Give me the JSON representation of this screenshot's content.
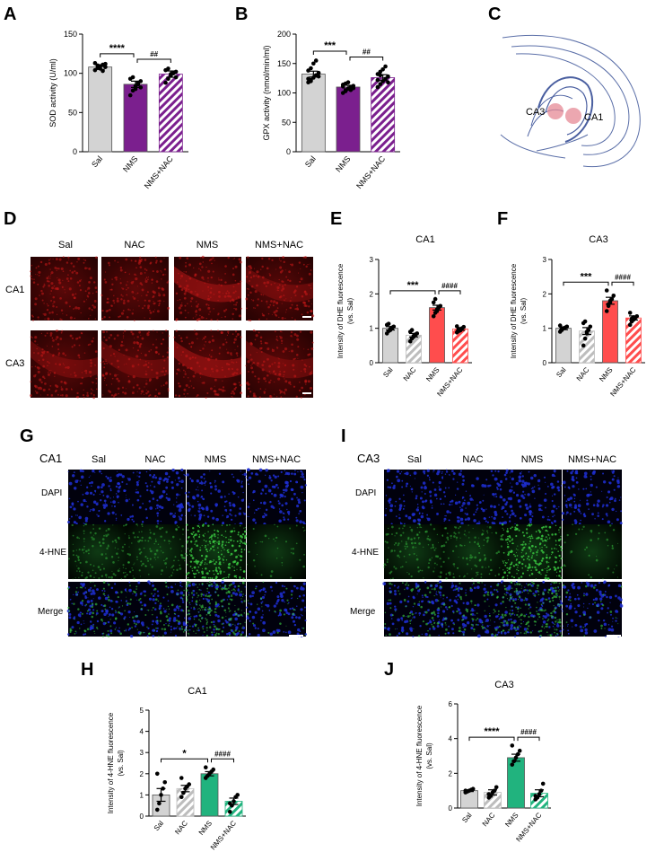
{
  "figure": {
    "panel_letters": [
      "A",
      "B",
      "C",
      "D",
      "E",
      "F",
      "G",
      "I",
      "H",
      "J"
    ],
    "micro": {
      "groups": [
        "Sal",
        "NAC",
        "NMS",
        "NMS+NAC"
      ],
      "regions_D": [
        "CA1",
        "CA3"
      ],
      "regions_G": "CA1",
      "regions_I": "CA3",
      "rows_GI": [
        "DAPI",
        "4-HNE",
        "Merge"
      ]
    },
    "schematic": {
      "labels": [
        "CA3",
        "CA1"
      ]
    }
  },
  "colors": {
    "sal": "#d3d3d3",
    "nac": "#bdbdbd",
    "nms_purple": "#7b1f8e",
    "nms_red": "#ff4d4d",
    "nms_green": "#21b37e"
  },
  "chart_data": [
    {
      "panel": "A",
      "type": "bar",
      "categories": [
        "Sal",
        "NMS",
        "NMS+NAC"
      ],
      "values": [
        108,
        86,
        99
      ],
      "errors": [
        3,
        4,
        4
      ],
      "ylabel": "SOD activity (U/ml)",
      "ylim": [
        0,
        150
      ],
      "yticks": [
        0,
        50,
        100,
        150
      ],
      "fills": [
        "solid",
        "solid",
        "hatch"
      ],
      "colors": [
        "#d3d3d3",
        "#7b1f8e",
        "#7b1f8e"
      ],
      "points": [
        [
          104,
          107,
          109,
          111,
          112,
          113,
          110,
          106,
          103,
          108
        ],
        [
          72,
          78,
          84,
          88,
          90,
          93,
          95,
          80,
          86,
          82
        ],
        [
          88,
          93,
          97,
          100,
          102,
          104,
          106,
          99,
          101,
          95
        ]
      ],
      "sig": [
        {
          "from": 0,
          "to": 1,
          "label": "****"
        },
        {
          "from": 1,
          "to": 2,
          "label": "##"
        }
      ]
    },
    {
      "panel": "B",
      "type": "bar",
      "categories": [
        "Sal",
        "NMS",
        "NMS+NAC"
      ],
      "values": [
        132,
        110,
        126
      ],
      "errors": [
        5,
        3,
        5
      ],
      "ylabel": "GPX activity (nmol/min/ml)",
      "ylim": [
        0,
        200
      ],
      "yticks": [
        0,
        50,
        100,
        150,
        200
      ],
      "fills": [
        "solid",
        "solid",
        "hatch"
      ],
      "colors": [
        "#d3d3d3",
        "#7b1f8e",
        "#7b1f8e"
      ],
      "points": [
        [
          118,
          122,
          126,
          130,
          134,
          138,
          142,
          150,
          155,
          128,
          124,
          120
        ],
        [
          100,
          104,
          107,
          110,
          112,
          114,
          116,
          118,
          105,
          108,
          111,
          103
        ],
        [
          110,
          115,
          120,
          124,
          128,
          132,
          136,
          140,
          145,
          118,
          122,
          130
        ]
      ],
      "sig": [
        {
          "from": 0,
          "to": 1,
          "label": "***"
        },
        {
          "from": 1,
          "to": 2,
          "label": "##"
        }
      ]
    },
    {
      "panel": "E",
      "type": "bar",
      "title": "CA1",
      "categories": [
        "Sal",
        "NAC",
        "NMS",
        "NMS+NAC"
      ],
      "values": [
        1.0,
        0.8,
        1.6,
        0.98
      ],
      "errors": [
        0.05,
        0.05,
        0.07,
        0.04
      ],
      "ylabel": "Intensity of DHE fluorescence\n(vs. Sal)",
      "ylim": [
        0,
        3
      ],
      "yticks": [
        0,
        1,
        2,
        3
      ],
      "fills": [
        "solid",
        "hatch",
        "solid",
        "hatch"
      ],
      "colors": [
        "#d3d3d3",
        "#bdbdbd",
        "#ff4d4d",
        "#ff4d4d"
      ],
      "points": [
        [
          0.85,
          0.92,
          0.98,
          1.02,
          1.05,
          1.1,
          1.13,
          0.95,
          1.0
        ],
        [
          0.62,
          0.7,
          0.75,
          0.8,
          0.85,
          0.9,
          0.95,
          0.78,
          0.82
        ],
        [
          1.35,
          1.45,
          1.55,
          1.6,
          1.65,
          1.75,
          1.85,
          1.5,
          1.62
        ],
        [
          0.88,
          0.92,
          0.96,
          1.0,
          1.04,
          1.06,
          0.98,
          0.94
        ]
      ],
      "sig": [
        {
          "from": 0,
          "to": 2,
          "label": "***"
        },
        {
          "from": 2,
          "to": 3,
          "label": "####"
        }
      ]
    },
    {
      "panel": "F",
      "type": "bar",
      "title": "CA3",
      "categories": [
        "Sal",
        "NAC",
        "NMS",
        "NMS+NAC"
      ],
      "values": [
        1.0,
        0.92,
        1.8,
        1.3
      ],
      "errors": [
        0.04,
        0.1,
        0.1,
        0.06
      ],
      "ylabel": "Intensity of DHE fluorescence\n(vs. Sal)",
      "ylim": [
        0,
        3
      ],
      "yticks": [
        0,
        1,
        2,
        3
      ],
      "fills": [
        "solid",
        "hatch",
        "solid",
        "hatch"
      ],
      "colors": [
        "#d3d3d3",
        "#bdbdbd",
        "#ff4d4d",
        "#ff4d4d"
      ],
      "points": [
        [
          0.9,
          0.95,
          1.0,
          1.02,
          1.05,
          1.08,
          0.98,
          1.0
        ],
        [
          0.5,
          0.7,
          0.85,
          0.95,
          1.05,
          1.15,
          1.2,
          0.9
        ],
        [
          1.5,
          1.65,
          1.75,
          1.85,
          1.95,
          2.1,
          1.7,
          1.8
        ],
        [
          1.1,
          1.2,
          1.25,
          1.3,
          1.35,
          1.45,
          1.28,
          1.32
        ]
      ],
      "sig": [
        {
          "from": 0,
          "to": 2,
          "label": "***"
        },
        {
          "from": 2,
          "to": 3,
          "label": "####"
        }
      ]
    },
    {
      "panel": "H",
      "type": "bar",
      "title": "CA1",
      "categories": [
        "Sal",
        "NAC",
        "NMS",
        "NMS+NAC"
      ],
      "values": [
        1.0,
        1.3,
        2.0,
        0.7
      ],
      "errors": [
        0.3,
        0.15,
        0.1,
        0.15
      ],
      "ylabel": "Intensity of 4-HNE fluorescence\n(vs. Sal)",
      "ylim": [
        0,
        5
      ],
      "yticks": [
        0,
        1,
        2,
        3,
        4,
        5
      ],
      "fills": [
        "solid",
        "hatch",
        "solid",
        "hatch"
      ],
      "colors": [
        "#d3d3d3",
        "#bdbdbd",
        "#21b37e",
        "#21b37e"
      ],
      "points": [
        [
          0.3,
          0.6,
          1.0,
          1.3,
          1.6,
          2.0
        ],
        [
          0.9,
          1.1,
          1.3,
          1.4,
          1.5,
          1.8
        ],
        [
          1.8,
          1.9,
          2.0,
          2.1,
          2.2,
          2.3
        ],
        [
          0.2,
          0.5,
          0.7,
          0.9,
          1.0,
          0.6
        ]
      ],
      "sig": [
        {
          "from": 0,
          "to": 2,
          "label": "*"
        },
        {
          "from": 2,
          "to": 3,
          "label": "####"
        }
      ]
    },
    {
      "panel": "J",
      "type": "bar",
      "title": "CA3",
      "categories": [
        "Sal",
        "NAC",
        "NMS",
        "NMS+NAC"
      ],
      "values": [
        1.0,
        0.9,
        2.9,
        0.85
      ],
      "errors": [
        0.05,
        0.15,
        0.2,
        0.2
      ],
      "ylabel": "Intensity of 4-HNE fluorescence\n(vs. Sal)",
      "ylim": [
        0,
        6
      ],
      "yticks": [
        0,
        2,
        4,
        6
      ],
      "fills": [
        "solid",
        "hatch",
        "solid",
        "hatch"
      ],
      "colors": [
        "#d3d3d3",
        "#bdbdbd",
        "#21b37e",
        "#21b37e"
      ],
      "points": [
        [
          0.9,
          0.95,
          1.0,
          1.05,
          1.1,
          1.0
        ],
        [
          0.6,
          0.7,
          0.9,
          1.0,
          1.2,
          0.8
        ],
        [
          2.5,
          2.7,
          2.9,
          3.1,
          3.3,
          3.6
        ],
        [
          0.5,
          0.6,
          0.8,
          1.0,
          1.4,
          0.7
        ]
      ],
      "sig": [
        {
          "from": 0,
          "to": 2,
          "label": "****"
        },
        {
          "from": 2,
          "to": 3,
          "label": "####"
        }
      ]
    }
  ]
}
